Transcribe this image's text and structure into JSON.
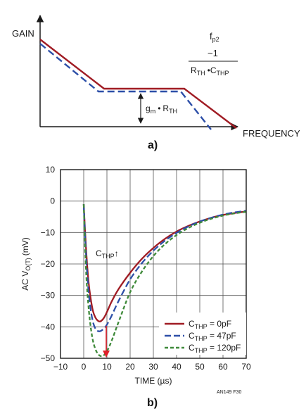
{
  "colors": {
    "red": "#a01c24",
    "blue": "#2d4fa8",
    "green": "#3f8a3a",
    "arrow_red": "#e0202a",
    "axis": "#1a1a1a",
    "grid": "#555555"
  },
  "panel_a": {
    "y_axis_label": "GAIN",
    "x_axis_label": "FREQUENCY",
    "pole_label_f": "f",
    "pole_label_f_sub": "p2",
    "pole_label_num": "~1",
    "pole_r": "R",
    "pole_r_sub": "TH",
    "pole_dot": "•",
    "pole_c": "C",
    "pole_c_sub": "THP",
    "gain_g": "g",
    "gain_g_sub": "m",
    "gain_dot": "•",
    "gain_r": "R",
    "gain_r_sub": "TH",
    "figure_label": "a)"
  },
  "panel_b": {
    "y_axis_title": "AC V",
    "y_axis_title_sub": "O(T)",
    "y_axis_title_unit": "(mV)",
    "x_axis_title": "TIME (µs)",
    "annotation_c": "C",
    "annotation_c_sub": "THP",
    "annotation_arrow": "↑",
    "legend": [
      {
        "c": "C",
        "sub": "THP",
        "text": " = 0pF"
      },
      {
        "c": "C",
        "sub": "THP",
        "text": " = 47pF"
      },
      {
        "c": "C",
        "sub": "THP",
        "text": " = 120pF"
      }
    ],
    "note": "AN149 F30",
    "figure_label": "b)"
  },
  "chart_data": {
    "type": "line",
    "xlabel": "TIME (µs)",
    "ylabel": "AC VO(T) (mV)",
    "xlim": [
      -10,
      70
    ],
    "ylim": [
      -50,
      10
    ],
    "x_ticks": [
      "-10",
      "0",
      "10",
      "20",
      "30",
      "40",
      "50",
      "60",
      "70"
    ],
    "y_ticks": [
      "10",
      "0",
      "-10",
      "-20",
      "-30",
      "-40",
      "-50"
    ],
    "grid": true,
    "legend_position": "bottom-right",
    "series": [
      {
        "name": "CTHP = 0pF",
        "color": "#a01c24",
        "dash": "solid",
        "x": [
          0,
          1,
          2,
          3,
          4,
          5,
          6,
          7,
          8,
          9,
          10,
          12,
          15,
          20,
          25,
          30,
          35,
          40,
          45,
          50,
          55,
          60,
          65,
          70
        ],
        "y": [
          -1,
          -15,
          -25,
          -31,
          -35,
          -37,
          -38,
          -38.3,
          -37.8,
          -36.8,
          -35.3,
          -32,
          -28,
          -22.8,
          -18.4,
          -14.9,
          -12,
          -9.7,
          -7.9,
          -6.5,
          -5.3,
          -4.4,
          -3.8,
          -3.3
        ]
      },
      {
        "name": "CTHP = 47pF",
        "color": "#2d4fa8",
        "dash": "long-dash",
        "x": [
          0,
          1,
          2,
          3,
          4,
          5,
          6,
          7,
          8,
          9,
          10,
          12,
          15,
          20,
          25,
          30,
          35,
          40,
          45,
          50,
          55,
          60,
          65,
          70
        ],
        "y": [
          -1,
          -17,
          -28,
          -34.5,
          -38.5,
          -40.5,
          -41.3,
          -41.4,
          -41,
          -40.3,
          -39.3,
          -36.5,
          -31.8,
          -24.9,
          -19.8,
          -15.8,
          -12.6,
          -10.1,
          -8.1,
          -6.5,
          -5.3,
          -4.3,
          -3.6,
          -3.1
        ]
      },
      {
        "name": "CTHP = 120pF",
        "color": "#3f8a3a",
        "dash": "short-dash",
        "x": [
          0,
          1,
          2,
          3,
          4,
          5,
          6,
          7,
          8,
          9,
          10,
          12,
          15,
          20,
          25,
          30,
          35,
          40,
          45,
          50,
          55,
          60,
          65,
          70
        ],
        "y": [
          -1,
          -22,
          -33,
          -40,
          -44.5,
          -47,
          -48.5,
          -49.2,
          -49.3,
          -48.8,
          -47.8,
          -44.5,
          -38.5,
          -29,
          -22.5,
          -17.5,
          -13.7,
          -10.8,
          -8.6,
          -6.9,
          -5.6,
          -4.6,
          -3.9,
          -3.4
        ]
      }
    ],
    "annotations": [
      "CTHP↑"
    ]
  }
}
